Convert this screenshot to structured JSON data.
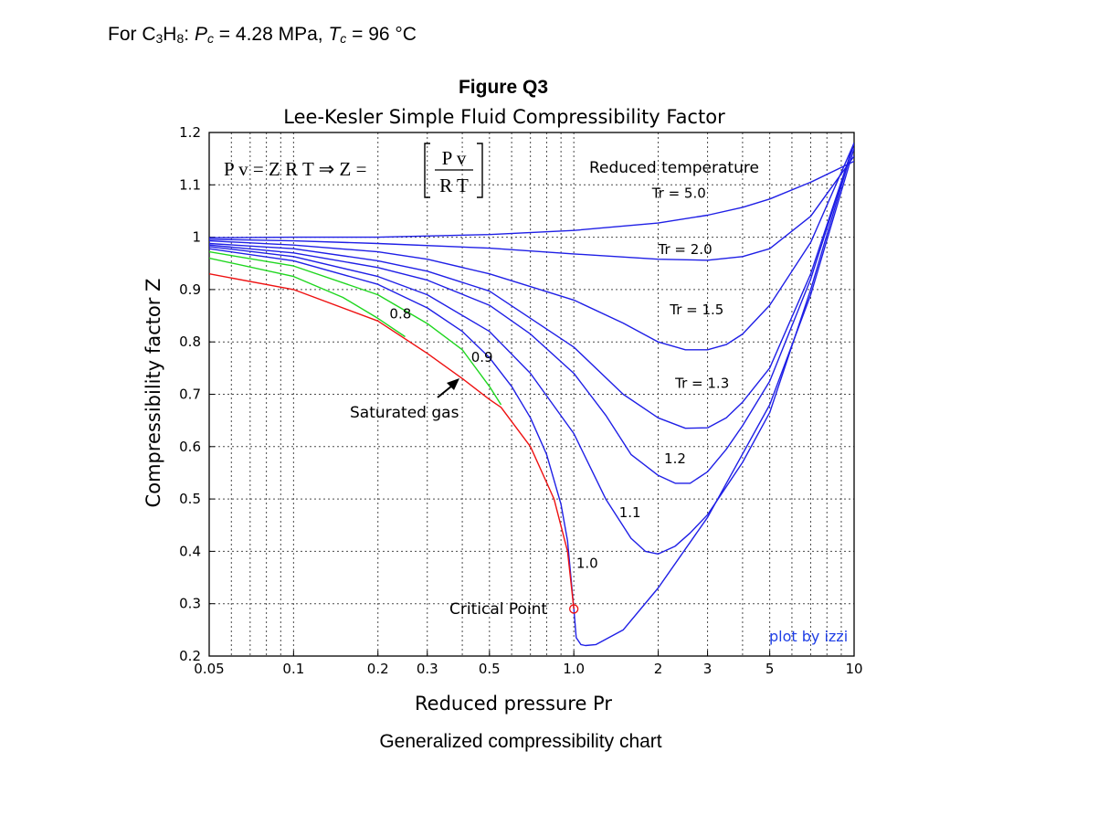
{
  "given": {
    "prefix": "For C",
    "sub1": "3",
    "mid": "H",
    "sub2": "8",
    "after_formula": ": ",
    "pc_symbol": "P",
    "pc_sub": "c",
    "pc_value": " = 4.28 MPa, ",
    "tc_symbol": "T",
    "tc_sub": "c",
    "tc_value": " = 96 °C"
  },
  "figure_title": "Figure Q3",
  "caption": "Generalized compressibility chart",
  "chart_data": {
    "type": "line",
    "title": "Lee-Kesler Simple Fluid Compressibility Factor",
    "xlabel": "Reduced pressure Pr",
    "ylabel": "Compressibility factor Z",
    "x_scale": "log",
    "xlim": [
      0.05,
      10
    ],
    "ylim": [
      0.2,
      1.2
    ],
    "x_ticks": [
      0.05,
      0.1,
      0.2,
      0.3,
      0.5,
      1.0,
      2,
      3,
      5,
      10
    ],
    "x_tick_labels": [
      "0.05",
      "0.1",
      "0.2",
      "0.3",
      "0.5",
      "1.0",
      "2",
      "3",
      "5",
      "10"
    ],
    "y_ticks": [
      0.2,
      0.3,
      0.4,
      0.5,
      0.6,
      0.7,
      0.8,
      0.9,
      1,
      1.1,
      1.2
    ],
    "y_tick_labels": [
      "0.2",
      "0.3",
      "0.4",
      "0.5",
      "0.6",
      "0.7",
      "0.8",
      "0.9",
      "1",
      "1.1",
      "1.2"
    ],
    "grid": true,
    "equation": {
      "left": "P v = Z R T  ⇒  Z =",
      "numerator": "P v",
      "denominator": "R T"
    },
    "legend_title": "Reduced temperature",
    "credit": "plot by izzi",
    "annotations": {
      "saturated_gas": "Saturated gas",
      "critical_point": "Critical Point"
    },
    "colors": {
      "isotherm": "#1f1fe6",
      "subcritical": "#1fd61f",
      "saturation": "#ee1111",
      "critical_marker": "#ee1111",
      "credit": "#1f3fe6",
      "grid": "#4a4a4a"
    },
    "series": [
      {
        "name": "Tr = 5.0",
        "color": "isotherm",
        "x": [
          0.05,
          0.1,
          0.2,
          0.5,
          1.0,
          2,
          3,
          4,
          5,
          7,
          10
        ],
        "y": [
          0.999,
          1.0,
          1.0,
          1.005,
          1.013,
          1.027,
          1.042,
          1.057,
          1.073,
          1.105,
          1.145
        ]
      },
      {
        "name": "Tr = 2.0",
        "color": "isotherm",
        "x": [
          0.05,
          0.1,
          0.2,
          0.5,
          1.0,
          2,
          3,
          4,
          5,
          7,
          10
        ],
        "y": [
          0.996,
          0.993,
          0.988,
          0.979,
          0.968,
          0.958,
          0.956,
          0.963,
          0.978,
          1.04,
          1.155
        ]
      },
      {
        "name": "Tr = 1.5",
        "color": "isotherm",
        "x": [
          0.05,
          0.1,
          0.2,
          0.3,
          0.5,
          1.0,
          1.5,
          2,
          2.5,
          3,
          3.5,
          4,
          5,
          7,
          10
        ],
        "y": [
          0.993,
          0.985,
          0.972,
          0.958,
          0.93,
          0.88,
          0.836,
          0.8,
          0.785,
          0.785,
          0.795,
          0.815,
          0.87,
          0.99,
          1.18
        ]
      },
      {
        "name": "Tr = 1.3",
        "color": "isotherm",
        "x": [
          0.05,
          0.1,
          0.2,
          0.3,
          0.5,
          1.0,
          1.5,
          2,
          2.5,
          3,
          3.5,
          4,
          5,
          7,
          10
        ],
        "y": [
          0.988,
          0.978,
          0.955,
          0.935,
          0.897,
          0.79,
          0.7,
          0.655,
          0.635,
          0.636,
          0.655,
          0.685,
          0.75,
          0.93,
          1.18
        ]
      },
      {
        "name": "1.2",
        "color": "isotherm",
        "x": [
          0.05,
          0.1,
          0.2,
          0.3,
          0.5,
          0.7,
          1.0,
          1.3,
          1.6,
          2,
          2.3,
          2.6,
          3,
          3.5,
          4,
          5,
          7,
          10
        ],
        "y": [
          0.985,
          0.97,
          0.942,
          0.918,
          0.87,
          0.815,
          0.74,
          0.66,
          0.585,
          0.545,
          0.53,
          0.53,
          0.552,
          0.595,
          0.64,
          0.725,
          0.92,
          1.18
        ]
      },
      {
        "name": "1.1",
        "color": "isotherm",
        "x": [
          0.05,
          0.1,
          0.2,
          0.3,
          0.5,
          0.7,
          1.0,
          1.3,
          1.6,
          1.8,
          2,
          2.3,
          2.6,
          3,
          4,
          5,
          7,
          10
        ],
        "y": [
          0.982,
          0.963,
          0.925,
          0.89,
          0.82,
          0.74,
          0.625,
          0.5,
          0.425,
          0.4,
          0.395,
          0.41,
          0.435,
          0.47,
          0.57,
          0.665,
          0.9,
          1.18
        ]
      },
      {
        "name": "1.0",
        "color": "isotherm",
        "x": [
          0.05,
          0.1,
          0.2,
          0.3,
          0.4,
          0.5,
          0.6,
          0.7,
          0.8,
          0.9,
          0.95,
          1.0,
          1.02,
          1.06,
          1.1,
          1.2,
          1.5,
          2,
          3,
          5,
          7,
          10
        ],
        "y": [
          0.978,
          0.955,
          0.91,
          0.865,
          0.82,
          0.77,
          0.715,
          0.655,
          0.585,
          0.49,
          0.42,
          0.29,
          0.235,
          0.222,
          0.22,
          0.222,
          0.25,
          0.33,
          0.465,
          0.68,
          0.89,
          1.17
        ]
      },
      {
        "name": "0.9",
        "color": "subcritical",
        "x": [
          0.05,
          0.1,
          0.2,
          0.3,
          0.4,
          0.5,
          0.55
        ],
        "y": [
          0.972,
          0.945,
          0.89,
          0.835,
          0.785,
          0.715,
          0.68
        ]
      },
      {
        "name": "0.8",
        "color": "subcritical",
        "x": [
          0.05,
          0.1,
          0.15,
          0.2,
          0.25
        ],
        "y": [
          0.96,
          0.925,
          0.885,
          0.845,
          0.81
        ]
      },
      {
        "name": "Saturated gas",
        "color": "saturation",
        "x": [
          0.05,
          0.1,
          0.2,
          0.3,
          0.4,
          0.5,
          0.55,
          0.7,
          0.85,
          0.95,
          1.0
        ],
        "y": [
          0.93,
          0.9,
          0.84,
          0.778,
          0.73,
          0.69,
          0.675,
          0.6,
          0.5,
          0.4,
          0.29
        ]
      }
    ],
    "curve_labels": [
      {
        "text": "Tr = 5.0",
        "x": 1.9,
        "y": 1.075,
        "italic": false
      },
      {
        "text": "Tr = 2.0",
        "x": 2.0,
        "y": 0.968,
        "italic": false
      },
      {
        "text": "Tr = 1.5",
        "x": 2.2,
        "y": 0.853,
        "italic": false
      },
      {
        "text": "Tr = 1.3",
        "x": 2.3,
        "y": 0.712,
        "italic": false
      },
      {
        "text": "1.2",
        "x": 2.1,
        "y": 0.568,
        "italic": false
      },
      {
        "text": "1.1",
        "x": 1.45,
        "y": 0.465,
        "italic": false
      },
      {
        "text": "1.0",
        "x": 1.02,
        "y": 0.368,
        "italic": false
      },
      {
        "text": "0.9",
        "x": 0.43,
        "y": 0.762,
        "italic": false
      },
      {
        "text": "0.8",
        "x": 0.22,
        "y": 0.845,
        "italic": false
      }
    ],
    "critical_point": {
      "x": 1.0,
      "y": 0.29
    }
  }
}
